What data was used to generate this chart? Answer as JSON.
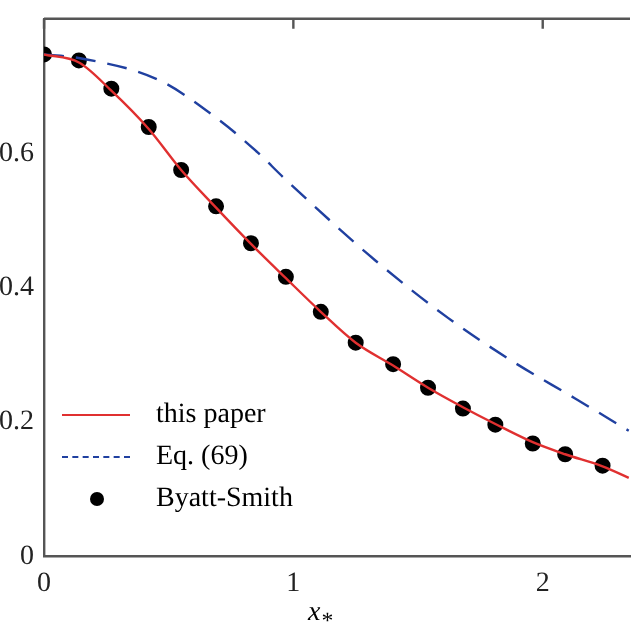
{
  "chart_data": {
    "type": "line",
    "xlabel": "x$_{*}$",
    "xlim": [
      0,
      2.35
    ],
    "ylim": [
      0,
      0.8
    ],
    "xticks": [
      0,
      1,
      2
    ],
    "yticks": [
      0,
      0.2,
      0.4,
      0.6
    ],
    "grid": false,
    "legend": "bottom left",
    "series": [
      {
        "name": "this paper",
        "color": "#e03030",
        "line_style": "solid",
        "marker": "none",
        "x": [
          0,
          0.14,
          0.27,
          0.42,
          0.55,
          0.69,
          0.83,
          0.97,
          1.11,
          1.25,
          1.4,
          1.54,
          1.68,
          1.81,
          1.96,
          2.09,
          2.24,
          2.345
        ],
        "values": [
          0.747,
          0.735,
          0.693,
          0.636,
          0.575,
          0.519,
          0.465,
          0.414,
          0.364,
          0.318,
          0.284,
          0.251,
          0.222,
          0.197,
          0.17,
          0.152,
          0.134,
          0.117
        ]
      },
      {
        "name": "Eq. (69)",
        "color": "#2040a0",
        "line_style": "dashed",
        "marker": "none",
        "x": [
          0,
          0.15,
          0.46,
          0.7,
          0.86,
          0.96,
          1.33,
          1.62,
          1.88,
          2.13,
          2.345
        ],
        "values": [
          0.747,
          0.741,
          0.709,
          0.65,
          0.6,
          0.564,
          0.44,
          0.355,
          0.29,
          0.235,
          0.187
        ]
      },
      {
        "name": "Byatt-Smith",
        "color": "#000000",
        "type": "scatter",
        "marker": "circle",
        "x": [
          0,
          0.14,
          0.27,
          0.42,
          0.55,
          0.69,
          0.83,
          0.97,
          1.11,
          1.25,
          1.4,
          1.54,
          1.68,
          1.81,
          1.96,
          2.09,
          2.24
        ],
        "values": [
          0.747,
          0.738,
          0.696,
          0.639,
          0.575,
          0.521,
          0.466,
          0.416,
          0.364,
          0.318,
          0.286,
          0.251,
          0.22,
          0.196,
          0.168,
          0.152,
          0.135
        ]
      }
    ]
  }
}
